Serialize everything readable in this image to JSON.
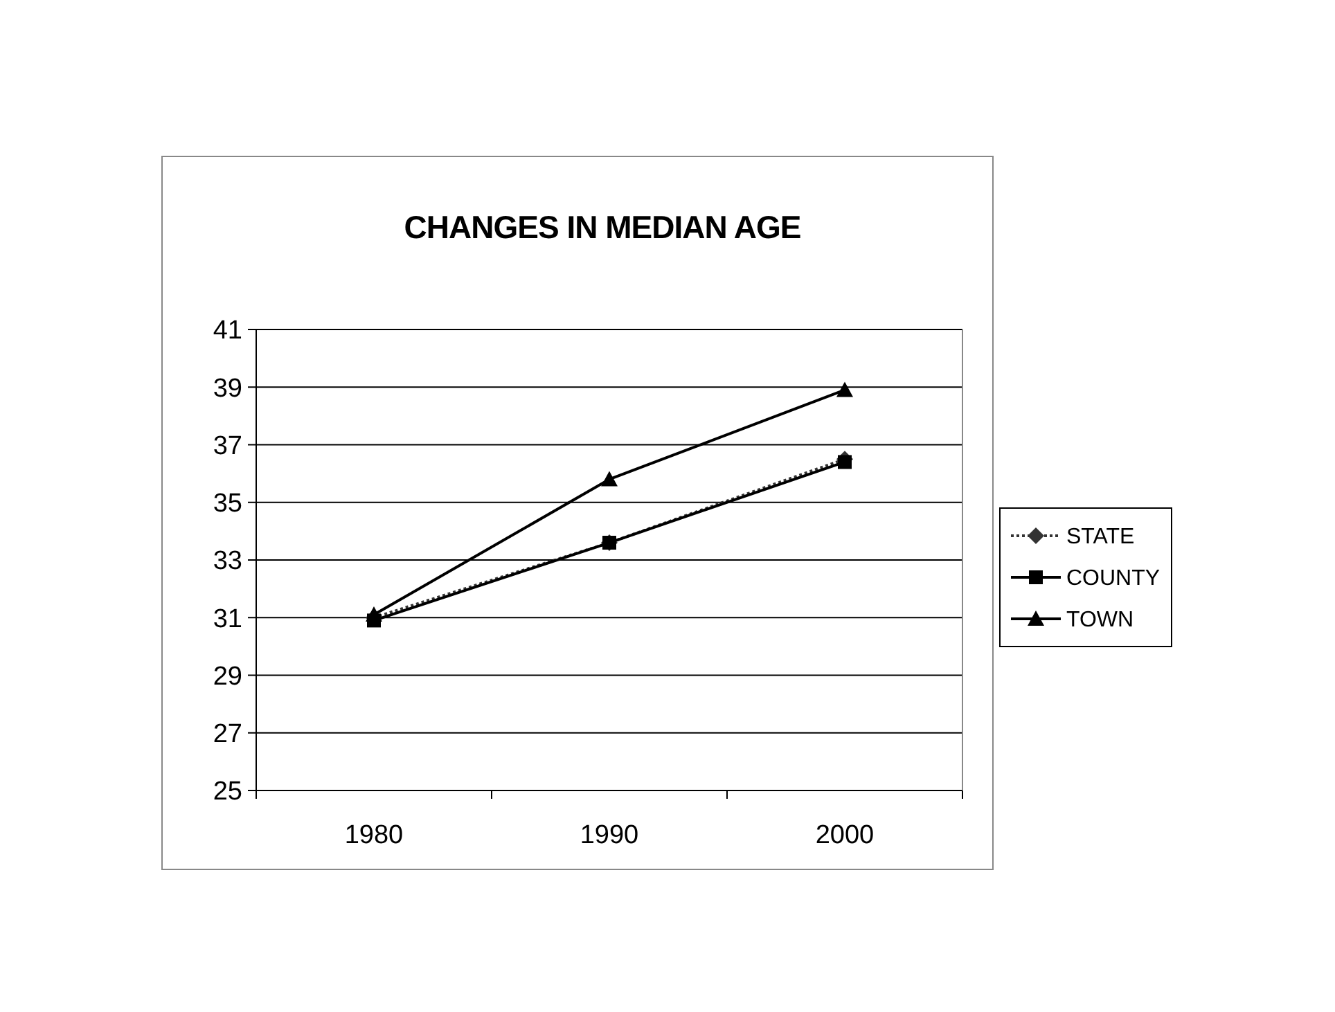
{
  "chart_data": {
    "type": "line",
    "title": "CHANGES IN MEDIAN AGE",
    "categories": [
      "1980",
      "1990",
      "2000"
    ],
    "series": [
      {
        "name": "STATE",
        "color": "#333333",
        "values": [
          31.0,
          33.6,
          36.5
        ],
        "marker": "diamond",
        "line_style": "dotted"
      },
      {
        "name": "COUNTY",
        "color": "#000000",
        "values": [
          30.9,
          33.6,
          36.4
        ],
        "marker": "square"
      },
      {
        "name": "TOWN",
        "color": "#000000",
        "values": [
          31.1,
          35.8,
          38.9
        ],
        "marker": "triangle"
      }
    ],
    "ylim": [
      25,
      41
    ],
    "yticks": [
      25,
      27,
      29,
      31,
      33,
      35,
      37,
      39,
      41
    ],
    "grid": "y",
    "legend": "right"
  }
}
